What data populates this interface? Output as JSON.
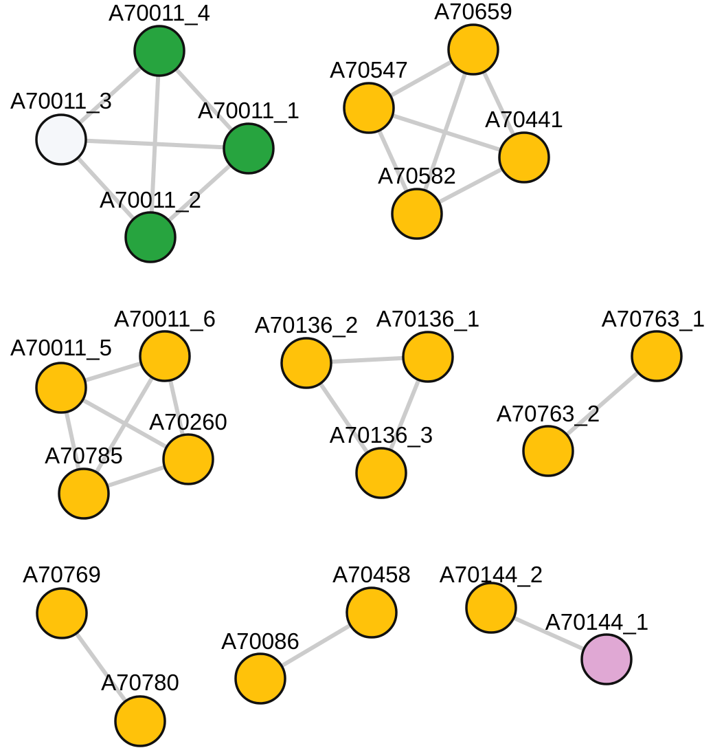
{
  "colors": {
    "green": "#27a43f",
    "orange": "#ffc20a",
    "white": "#f5f7fa",
    "pink": "#e0a8d4",
    "edge": "#cccccc",
    "stroke": "#111111"
  },
  "nodes": [
    {
      "id": "A70011_4",
      "label": "A70011_4",
      "color": "green"
    },
    {
      "id": "A70011_3",
      "label": "A70011_3",
      "color": "white"
    },
    {
      "id": "A70011_1",
      "label": "A70011_1",
      "color": "green"
    },
    {
      "id": "A70011_2",
      "label": "A70011_2",
      "color": "green"
    },
    {
      "id": "A70659",
      "label": "A70659",
      "color": "orange"
    },
    {
      "id": "A70547",
      "label": "A70547",
      "color": "orange"
    },
    {
      "id": "A70441",
      "label": "A70441",
      "color": "orange"
    },
    {
      "id": "A70582",
      "label": "A70582",
      "color": "orange"
    },
    {
      "id": "A70011_6",
      "label": "A70011_6",
      "color": "orange"
    },
    {
      "id": "A70011_5",
      "label": "A70011_5",
      "color": "orange"
    },
    {
      "id": "A70260",
      "label": "A70260",
      "color": "orange"
    },
    {
      "id": "A70785",
      "label": "A70785",
      "color": "orange"
    },
    {
      "id": "A70136_2",
      "label": "A70136_2",
      "color": "orange"
    },
    {
      "id": "A70136_1",
      "label": "A70136_1",
      "color": "orange"
    },
    {
      "id": "A70136_3",
      "label": "A70136_3",
      "color": "orange"
    },
    {
      "id": "A70763_1",
      "label": "A70763_1",
      "color": "orange"
    },
    {
      "id": "A70763_2",
      "label": "A70763_2",
      "color": "orange"
    },
    {
      "id": "A70769",
      "label": "A70769",
      "color": "orange"
    },
    {
      "id": "A70780",
      "label": "A70780",
      "color": "orange"
    },
    {
      "id": "A70458",
      "label": "A70458",
      "color": "orange"
    },
    {
      "id": "A70086",
      "label": "A70086",
      "color": "orange"
    },
    {
      "id": "A70144_2",
      "label": "A70144_2",
      "color": "orange"
    },
    {
      "id": "A70144_1",
      "label": "A70144_1",
      "color": "pink"
    }
  ],
  "edges": [
    [
      "A70011_4",
      "A70011_3"
    ],
    [
      "A70011_4",
      "A70011_1"
    ],
    [
      "A70011_4",
      "A70011_2"
    ],
    [
      "A70011_3",
      "A70011_1"
    ],
    [
      "A70011_3",
      "A70011_2"
    ],
    [
      "A70011_1",
      "A70011_2"
    ],
    [
      "A70547",
      "A70659"
    ],
    [
      "A70547",
      "A70441"
    ],
    [
      "A70547",
      "A70582"
    ],
    [
      "A70659",
      "A70441"
    ],
    [
      "A70659",
      "A70582"
    ],
    [
      "A70582",
      "A70441"
    ],
    [
      "A70011_5",
      "A70011_6"
    ],
    [
      "A70011_5",
      "A70260"
    ],
    [
      "A70011_5",
      "A70785"
    ],
    [
      "A70011_6",
      "A70260"
    ],
    [
      "A70011_6",
      "A70785"
    ],
    [
      "A70785",
      "A70260"
    ],
    [
      "A70136_2",
      "A70136_1"
    ],
    [
      "A70136_2",
      "A70136_3"
    ],
    [
      "A70136_1",
      "A70136_3"
    ],
    [
      "A70763_1",
      "A70763_2"
    ],
    [
      "A70769",
      "A70780"
    ],
    [
      "A70458",
      "A70086"
    ],
    [
      "A70144_2",
      "A70144_1"
    ]
  ]
}
